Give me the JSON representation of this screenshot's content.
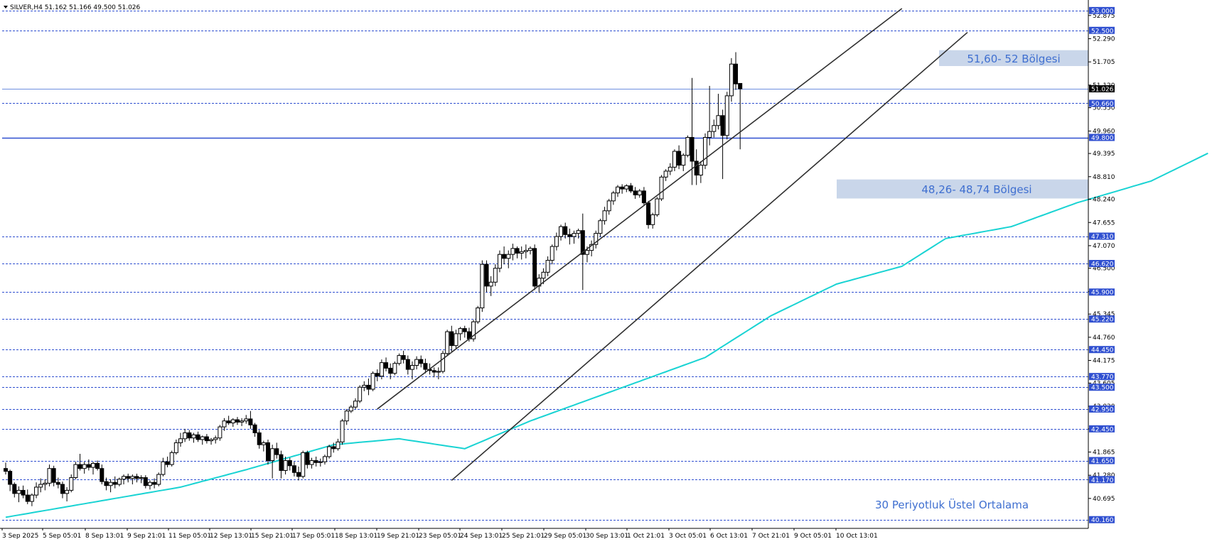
{
  "chart_data": {
    "type": "candlestick",
    "title": "SILVER,H4  51.162 51.166 49.500 51.026",
    "symbol": "SILVER",
    "timeframe": "H4",
    "ohlc_header": {
      "open": 51.162,
      "high": 51.166,
      "low": 49.5,
      "close": 51.026
    },
    "last_price": 51.026,
    "ylim": [
      39.94,
      53.23
    ],
    "y_ticks": [
      52.875,
      52.29,
      51.705,
      51.12,
      50.55,
      49.96,
      49.395,
      48.81,
      48.24,
      47.655,
      47.07,
      46.5,
      45.915,
      45.345,
      44.76,
      44.175,
      43.605,
      43.02,
      42.45,
      41.865,
      41.28,
      40.695
    ],
    "x_labels": [
      "3 Sep 2025",
      "5 Sep 05:01",
      "8 Sep 13:01",
      "9 Sep 21:01",
      "11 Sep 05:01",
      "12 Sep 13:01",
      "15 Sep 21:01",
      "17 Sep 05:01",
      "18 Sep 13:01",
      "19 Sep 21:01",
      "23 Sep 05:01",
      "24 Sep 13:01",
      "25 Sep 21:01",
      "29 Sep 05:01",
      "30 Sep 13:01",
      "1 Oct 21:01",
      "3 Oct 05:01",
      "6 Oct 13:01",
      "7 Oct 21:01",
      "9 Oct 05:01",
      "10 Oct 13:01"
    ],
    "horizontal_levels": [
      {
        "value": 53.0,
        "label": "53.000",
        "style": "dashed"
      },
      {
        "value": 52.5,
        "label": "52.500",
        "style": "dashed"
      },
      {
        "value": 50.66,
        "label": "50.660",
        "style": "dashed"
      },
      {
        "value": 49.8,
        "label": "49.800",
        "style": "solid"
      },
      {
        "value": 47.31,
        "label": "47.310",
        "style": "dashed"
      },
      {
        "value": 46.62,
        "label": "46.620",
        "style": "dashed"
      },
      {
        "value": 45.9,
        "label": "45.900",
        "style": "dashed"
      },
      {
        "value": 45.22,
        "label": "45.220",
        "style": "dashed"
      },
      {
        "value": 44.45,
        "label": "44.450",
        "style": "dashed"
      },
      {
        "value": 43.77,
        "label": "43.770",
        "style": "dashed"
      },
      {
        "value": 43.5,
        "label": "43.500",
        "style": "dashed"
      },
      {
        "value": 42.95,
        "label": "42.950",
        "style": "dashed"
      },
      {
        "value": 42.45,
        "label": "42.450",
        "style": "dashed"
      },
      {
        "value": 41.65,
        "label": "41.650",
        "style": "dashed"
      },
      {
        "value": 41.17,
        "label": "41.170",
        "style": "dashed"
      },
      {
        "value": 40.16,
        "label": "40.160",
        "style": "dashed"
      }
    ],
    "zones": [
      {
        "label": "51,60- 52 Bölgesi",
        "from": 51.6,
        "to": 52.0
      },
      {
        "label": "48,26- 48,74 Bölgesi",
        "from": 48.26,
        "to": 48.74
      }
    ],
    "channel": {
      "lower": {
        "start": {
          "bar": 102,
          "price": 41.15
        },
        "end": {
          "bar": 220,
          "price": 52.45
        }
      },
      "upper": {
        "start": {
          "bar": 85,
          "price": 42.95
        },
        "end": {
          "bar": 205,
          "price": 53.05
        }
      }
    },
    "ema": {
      "label": "30 Periyotluk Üstel Ortalama",
      "period": 30,
      "color": "#19d3d3",
      "anchors": [
        [
          0,
          40.22
        ],
        [
          20,
          40.6
        ],
        [
          40,
          40.98
        ],
        [
          55,
          41.42
        ],
        [
          75,
          42.05
        ],
        [
          90,
          42.2
        ],
        [
          105,
          41.95
        ],
        [
          120,
          42.65
        ],
        [
          140,
          43.45
        ],
        [
          160,
          44.25
        ],
        [
          175,
          45.3
        ],
        [
          190,
          46.1
        ],
        [
          205,
          46.55
        ],
        [
          215,
          47.25
        ],
        [
          230,
          47.55
        ],
        [
          245,
          48.15
        ],
        [
          262,
          48.7
        ],
        [
          275,
          49.4
        ]
      ]
    },
    "candles": [
      [
        41.45,
        41.6,
        41.3,
        41.38
      ],
      [
        41.38,
        41.42,
        40.88,
        41.05
      ],
      [
        41.05,
        41.1,
        40.72,
        40.82
      ],
      [
        40.82,
        41.0,
        40.6,
        40.9
      ],
      [
        40.9,
        41.02,
        40.7,
        40.78
      ],
      [
        40.78,
        40.92,
        40.55,
        40.62
      ],
      [
        40.62,
        40.82,
        40.5,
        40.78
      ],
      [
        40.78,
        41.1,
        40.7,
        40.98
      ],
      [
        40.98,
        41.2,
        40.85,
        41.05
      ],
      [
        41.05,
        41.18,
        40.9,
        41.08
      ],
      [
        41.08,
        41.55,
        41.0,
        41.45
      ],
      [
        41.45,
        41.52,
        41.0,
        41.1
      ],
      [
        41.1,
        41.22,
        40.95,
        41.05
      ],
      [
        41.05,
        41.12,
        40.7,
        40.82
      ],
      [
        40.82,
        40.98,
        40.62,
        40.9
      ],
      [
        40.9,
        41.3,
        40.85,
        41.22
      ],
      [
        41.22,
        41.62,
        41.18,
        41.55
      ],
      [
        41.55,
        41.82,
        41.4,
        41.45
      ],
      [
        41.45,
        41.62,
        41.32,
        41.55
      ],
      [
        41.55,
        41.68,
        41.4,
        41.48
      ],
      [
        41.48,
        41.62,
        41.3,
        41.58
      ],
      [
        41.58,
        41.65,
        41.4,
        41.45
      ],
      [
        41.45,
        41.55,
        41.05,
        41.12
      ],
      [
        41.12,
        41.22,
        40.9,
        41.02
      ],
      [
        41.02,
        41.18,
        40.85,
        41.1
      ],
      [
        41.1,
        41.25,
        40.95,
        41.05
      ],
      [
        41.05,
        41.22,
        41.0,
        41.18
      ],
      [
        41.18,
        41.3,
        41.05,
        41.25
      ],
      [
        41.25,
        41.32,
        41.1,
        41.2
      ],
      [
        41.2,
        41.3,
        41.05,
        41.25
      ],
      [
        41.25,
        41.32,
        41.1,
        41.2
      ],
      [
        41.2,
        41.28,
        41.08,
        41.22
      ],
      [
        41.22,
        41.28,
        40.95,
        41.02
      ],
      [
        41.02,
        41.15,
        40.92,
        41.1
      ],
      [
        41.1,
        41.2,
        40.95,
        41.05
      ],
      [
        41.05,
        41.35,
        41.0,
        41.3
      ],
      [
        41.3,
        41.72,
        41.25,
        41.62
      ],
      [
        41.62,
        41.75,
        41.48,
        41.55
      ],
      [
        41.55,
        41.9,
        41.5,
        41.85
      ],
      [
        41.85,
        42.18,
        41.8,
        42.1
      ],
      [
        42.1,
        42.35,
        42.0,
        42.2
      ],
      [
        42.2,
        42.45,
        42.12,
        42.35
      ],
      [
        42.35,
        42.42,
        42.15,
        42.22
      ],
      [
        42.22,
        42.35,
        42.1,
        42.3
      ],
      [
        42.3,
        42.38,
        42.12,
        42.18
      ],
      [
        42.18,
        42.28,
        42.05,
        42.25
      ],
      [
        42.25,
        42.32,
        42.08,
        42.15
      ],
      [
        42.15,
        42.22,
        42.05,
        42.18
      ],
      [
        42.18,
        42.28,
        42.08,
        42.22
      ],
      [
        42.22,
        42.55,
        42.15,
        42.5
      ],
      [
        42.5,
        42.72,
        42.4,
        42.65
      ],
      [
        42.65,
        42.78,
        42.55,
        42.6
      ],
      [
        42.6,
        42.72,
        42.5,
        42.68
      ],
      [
        42.68,
        42.75,
        42.55,
        42.62
      ],
      [
        42.62,
        42.72,
        42.52,
        42.65
      ],
      [
        42.65,
        42.8,
        42.58,
        42.7
      ],
      [
        42.7,
        42.9,
        42.45,
        42.55
      ],
      [
        42.55,
        42.6,
        42.25,
        42.35
      ],
      [
        42.35,
        42.42,
        41.95,
        42.05
      ],
      [
        42.05,
        42.15,
        41.88,
        42.1
      ],
      [
        42.1,
        42.18,
        41.55,
        41.65
      ],
      [
        41.65,
        42.05,
        41.2,
        41.95
      ],
      [
        41.95,
        42.1,
        41.7,
        41.8
      ],
      [
        41.8,
        41.9,
        41.2,
        41.4
      ],
      [
        41.4,
        41.75,
        41.3,
        41.65
      ],
      [
        41.65,
        41.72,
        41.4,
        41.52
      ],
      [
        41.52,
        41.62,
        41.25,
        41.35
      ],
      [
        41.35,
        41.5,
        41.15,
        41.25
      ],
      [
        41.25,
        41.9,
        41.2,
        41.85
      ],
      [
        41.85,
        41.9,
        41.45,
        41.55
      ],
      [
        41.55,
        41.72,
        41.45,
        41.65
      ],
      [
        41.65,
        41.75,
        41.5,
        41.6
      ],
      [
        41.6,
        41.7,
        41.5,
        41.62
      ],
      [
        41.62,
        41.8,
        41.55,
        41.75
      ],
      [
        41.75,
        42.05,
        41.7,
        42.0
      ],
      [
        42.0,
        42.1,
        41.85,
        41.95
      ],
      [
        41.95,
        42.2,
        41.9,
        42.12
      ],
      [
        42.12,
        42.7,
        42.05,
        42.65
      ],
      [
        42.65,
        42.95,
        42.55,
        42.9
      ],
      [
        42.9,
        43.05,
        42.85,
        43.0
      ],
      [
        43.0,
        43.22,
        42.95,
        43.15
      ],
      [
        43.15,
        43.55,
        43.1,
        43.5
      ],
      [
        43.5,
        43.65,
        43.4,
        43.55
      ],
      [
        43.55,
        43.72,
        43.3,
        43.45
      ],
      [
        43.45,
        43.9,
        43.4,
        43.85
      ],
      [
        43.85,
        43.95,
        43.65,
        43.78
      ],
      [
        43.78,
        44.2,
        43.7,
        44.12
      ],
      [
        44.12,
        44.25,
        43.9,
        43.98
      ],
      [
        43.98,
        44.1,
        43.7,
        43.85
      ],
      [
        43.85,
        44.15,
        43.8,
        44.1
      ],
      [
        44.1,
        44.35,
        44.05,
        44.3
      ],
      [
        44.3,
        44.42,
        44.1,
        44.2
      ],
      [
        44.2,
        44.3,
        43.82,
        43.95
      ],
      [
        43.95,
        44.15,
        43.7,
        44.05
      ],
      [
        44.05,
        44.28,
        43.95,
        44.2
      ],
      [
        44.2,
        44.3,
        44.0,
        44.1
      ],
      [
        44.1,
        44.22,
        43.85,
        43.95
      ],
      [
        43.95,
        44.1,
        43.82,
        43.92
      ],
      [
        43.92,
        44.0,
        43.75,
        43.88
      ],
      [
        43.88,
        44.0,
        43.7,
        43.9
      ],
      [
        43.9,
        44.42,
        43.85,
        44.35
      ],
      [
        44.35,
        44.95,
        44.3,
        44.9
      ],
      [
        44.9,
        45.05,
        44.4,
        44.55
      ],
      [
        44.55,
        44.95,
        44.45,
        44.85
      ],
      [
        44.85,
        45.02,
        44.68,
        44.98
      ],
      [
        44.98,
        45.05,
        44.75,
        44.9
      ],
      [
        44.9,
        45.0,
        44.65,
        44.72
      ],
      [
        44.72,
        45.2,
        44.65,
        45.15
      ],
      [
        45.15,
        45.55,
        45.1,
        45.5
      ],
      [
        45.5,
        46.7,
        45.4,
        46.6
      ],
      [
        46.6,
        46.7,
        45.9,
        46.05
      ],
      [
        46.05,
        46.3,
        45.8,
        46.15
      ],
      [
        46.15,
        46.6,
        46.05,
        46.5
      ],
      [
        46.5,
        46.95,
        46.4,
        46.85
      ],
      [
        46.85,
        47.05,
        46.6,
        46.75
      ],
      [
        46.75,
        46.95,
        46.5,
        46.85
      ],
      [
        46.85,
        47.12,
        46.7,
        47.0
      ],
      [
        47.0,
        47.05,
        46.75,
        46.88
      ],
      [
        46.88,
        47.05,
        46.72,
        46.92
      ],
      [
        46.92,
        47.1,
        46.75,
        46.95
      ],
      [
        46.95,
        47.05,
        46.85,
        47.0
      ],
      [
        47.0,
        47.1,
        45.95,
        46.05
      ],
      [
        46.05,
        46.35,
        45.88,
        46.25
      ],
      [
        46.25,
        46.5,
        46.1,
        46.4
      ],
      [
        46.4,
        46.8,
        46.3,
        46.7
      ],
      [
        46.7,
        47.1,
        46.6,
        47.05
      ],
      [
        47.05,
        47.4,
        46.95,
        47.3
      ],
      [
        47.3,
        47.6,
        47.2,
        47.55
      ],
      [
        47.55,
        47.65,
        47.25,
        47.35
      ],
      [
        47.35,
        47.5,
        47.1,
        47.3
      ],
      [
        47.3,
        47.45,
        47.12,
        47.38
      ],
      [
        47.38,
        47.5,
        47.25,
        47.45
      ],
      [
        47.45,
        47.88,
        45.95,
        46.85
      ],
      [
        46.85,
        47.05,
        46.65,
        46.95
      ],
      [
        46.95,
        47.2,
        46.8,
        47.1
      ],
      [
        47.1,
        47.45,
        47.0,
        47.38
      ],
      [
        47.38,
        47.75,
        47.3,
        47.7
      ],
      [
        47.7,
        48.05,
        47.6,
        47.95
      ],
      [
        47.95,
        48.25,
        47.85,
        48.2
      ],
      [
        48.2,
        48.45,
        48.1,
        48.4
      ],
      [
        48.4,
        48.6,
        48.3,
        48.55
      ],
      [
        48.55,
        48.62,
        48.38,
        48.5
      ],
      [
        48.5,
        48.62,
        48.42,
        48.58
      ],
      [
        48.58,
        48.65,
        48.4,
        48.45
      ],
      [
        48.45,
        48.55,
        48.25,
        48.35
      ],
      [
        48.35,
        48.5,
        48.28,
        48.45
      ],
      [
        48.45,
        48.55,
        48.08,
        48.15
      ],
      [
        48.15,
        48.2,
        47.5,
        47.6
      ],
      [
        47.6,
        47.9,
        47.5,
        47.85
      ],
      [
        47.85,
        48.3,
        47.8,
        48.25
      ],
      [
        48.25,
        48.85,
        48.2,
        48.8
      ],
      [
        48.8,
        49.0,
        48.7,
        48.95
      ],
      [
        48.95,
        49.15,
        48.85,
        49.05
      ],
      [
        49.05,
        49.5,
        48.95,
        49.45
      ],
      [
        49.45,
        49.6,
        49.0,
        49.1
      ],
      [
        49.1,
        49.4,
        48.95,
        49.35
      ],
      [
        49.35,
        49.85,
        49.3,
        49.8
      ],
      [
        49.8,
        51.3,
        48.6,
        49.2
      ],
      [
        49.2,
        49.5,
        48.6,
        48.85
      ],
      [
        48.85,
        49.2,
        48.65,
        49.1
      ],
      [
        49.1,
        49.9,
        49.0,
        49.8
      ],
      [
        49.8,
        51.1,
        49.6,
        49.95
      ],
      [
        49.95,
        50.25,
        49.8,
        50.1
      ],
      [
        50.1,
        50.9,
        50.0,
        50.35
      ],
      [
        50.35,
        50.5,
        48.75,
        49.85
      ],
      [
        49.85,
        50.95,
        49.75,
        50.85
      ],
      [
        50.85,
        51.8,
        50.7,
        51.65
      ],
      [
        51.65,
        51.95,
        51.0,
        51.15
      ],
      [
        51.162,
        51.166,
        49.5,
        51.026
      ]
    ]
  }
}
